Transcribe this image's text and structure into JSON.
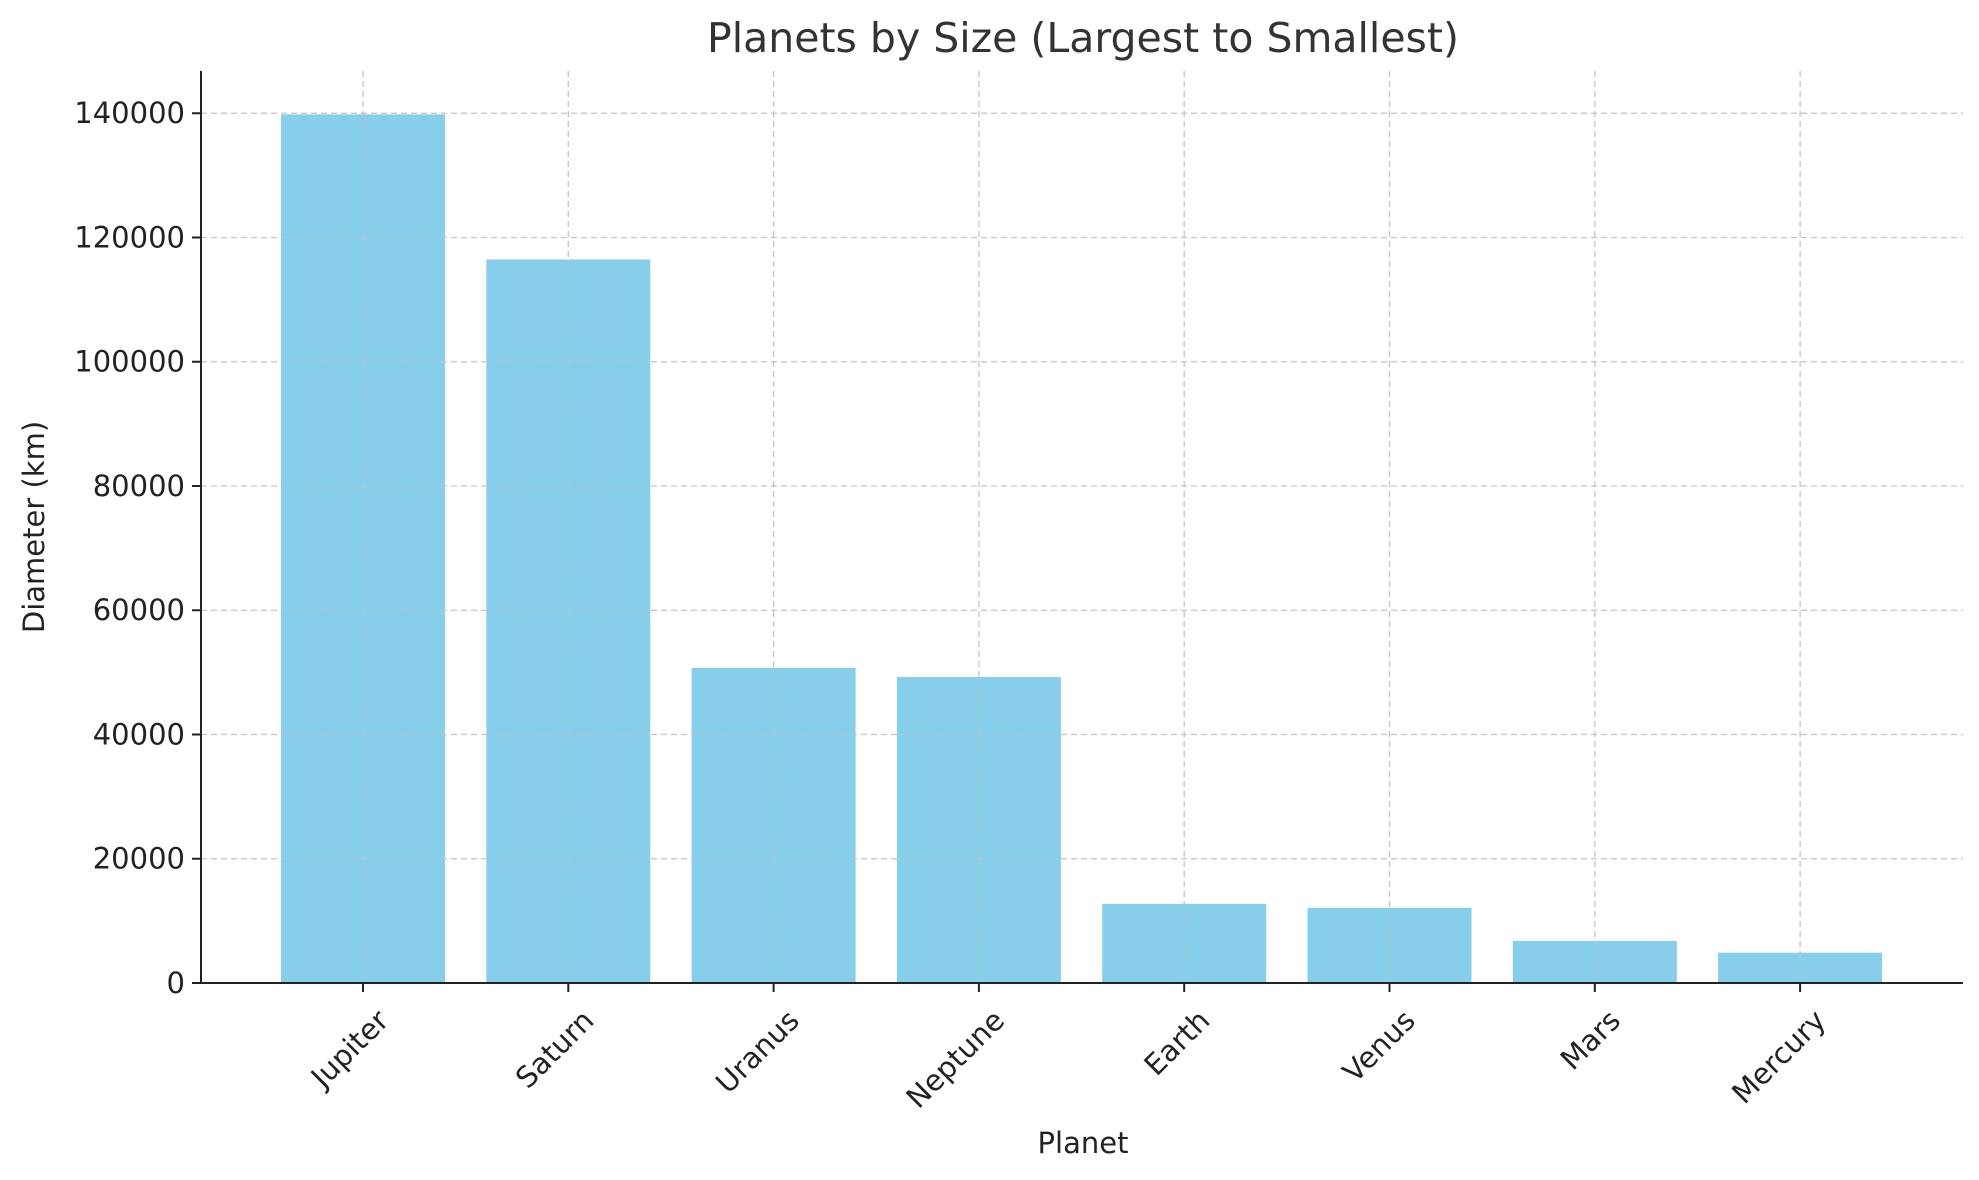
{
  "chart_data": {
    "type": "bar",
    "title": "Planets by Size (Largest to Smallest)",
    "xlabel": "Planet",
    "ylabel": "Diameter (km)",
    "categories": [
      "Jupiter",
      "Saturn",
      "Uranus",
      "Neptune",
      "Earth",
      "Venus",
      "Mars",
      "Mercury"
    ],
    "values": [
      139820,
      116460,
      50724,
      49244,
      12742,
      12104,
      6779,
      4879
    ],
    "ylim": [
      0,
      146800
    ],
    "yticks": [
      0,
      20000,
      40000,
      60000,
      80000,
      100000,
      120000,
      140000
    ],
    "ytick_labels": [
      "0",
      "20000",
      "40000",
      "60000",
      "80000",
      "100000",
      "120000",
      "140000"
    ],
    "grid": true,
    "bar_color": "#87ceeb"
  }
}
